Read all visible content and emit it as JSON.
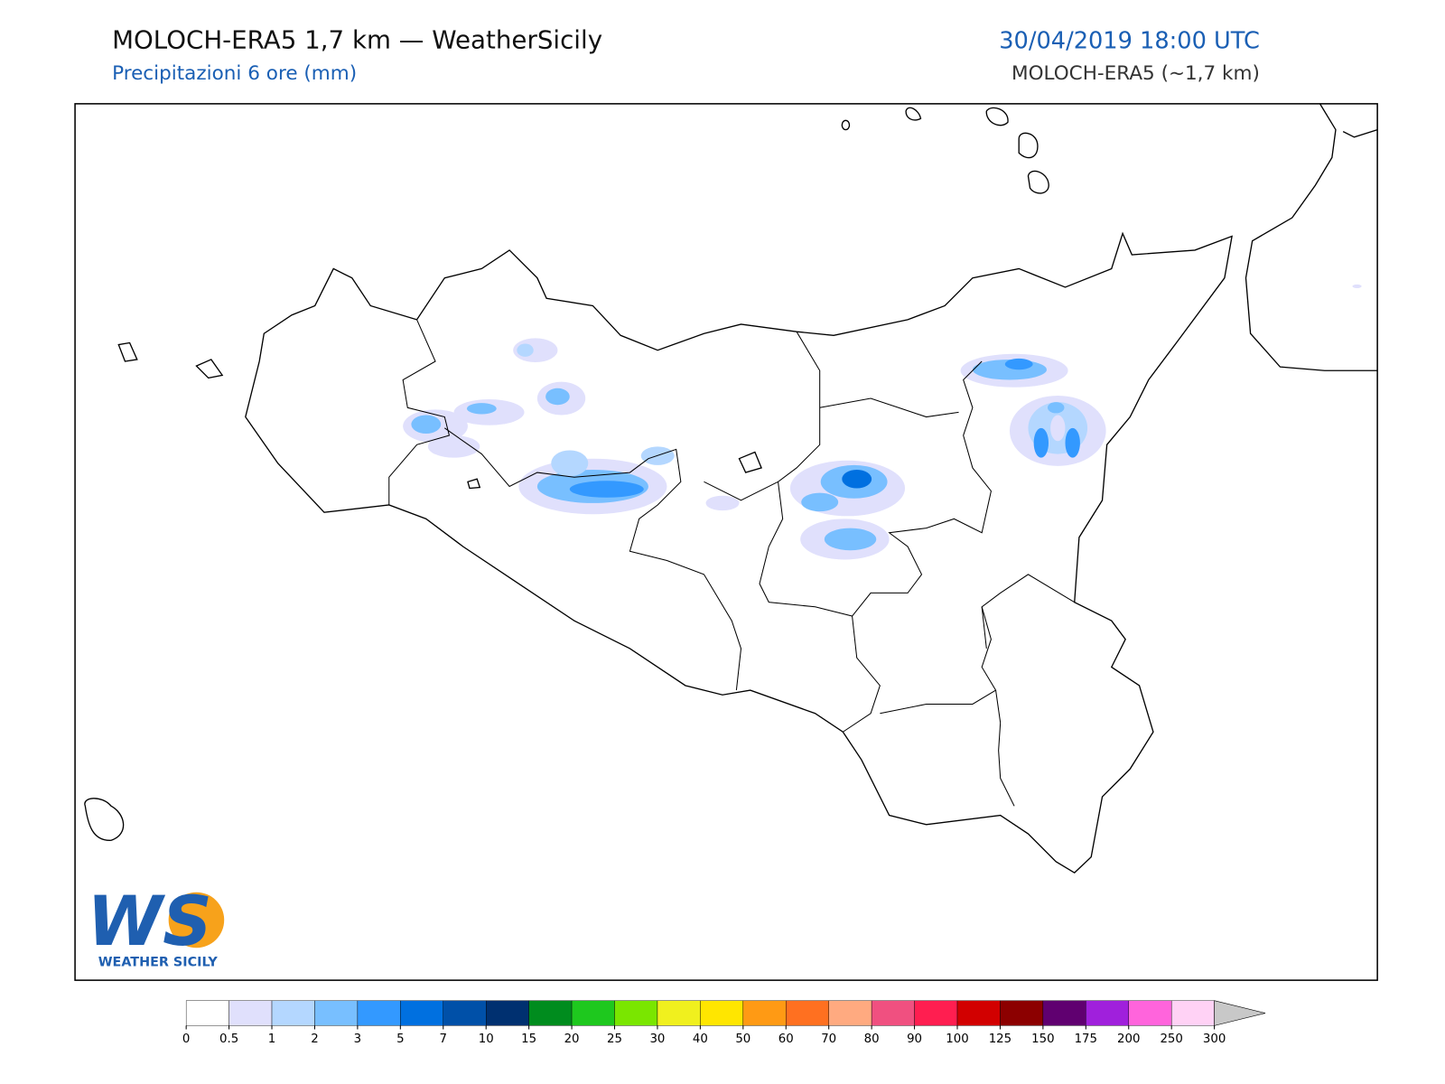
{
  "header": {
    "title": "MOLOCH-ERA5 1,7 km — WeatherSicily",
    "subtitle": "Precipitazioni 6 ore (mm)",
    "datetime": "30/04/2019 18:00 UTC",
    "model": "MOLOCH-ERA5 (~1,7 km)"
  },
  "logo": {
    "mark": "WS",
    "text": "WEATHER SICILY"
  },
  "colorbar": {
    "ticks": [
      0,
      0.5,
      1,
      2,
      3,
      5,
      7,
      10,
      15,
      20,
      25,
      30,
      40,
      50,
      60,
      70,
      80,
      90,
      100,
      125,
      150,
      175,
      200,
      250,
      300
    ],
    "colors": [
      "#ffffff",
      "#e0e0fc",
      "#b4d7ff",
      "#78bfff",
      "#3399ff",
      "#0070e0",
      "#0050a8",
      "#003070",
      "#008c1e",
      "#1ec81e",
      "#7ae600",
      "#f0f01e",
      "#ffe600",
      "#ff9a14",
      "#ff7020",
      "#ffaa80",
      "#f05080",
      "#ff1e50",
      "#d20000",
      "#8c0000",
      "#600070",
      "#a020dc",
      "#ff64dc",
      "#ffd2f5"
    ],
    "extend_color": "#c8c8c8"
  }
}
